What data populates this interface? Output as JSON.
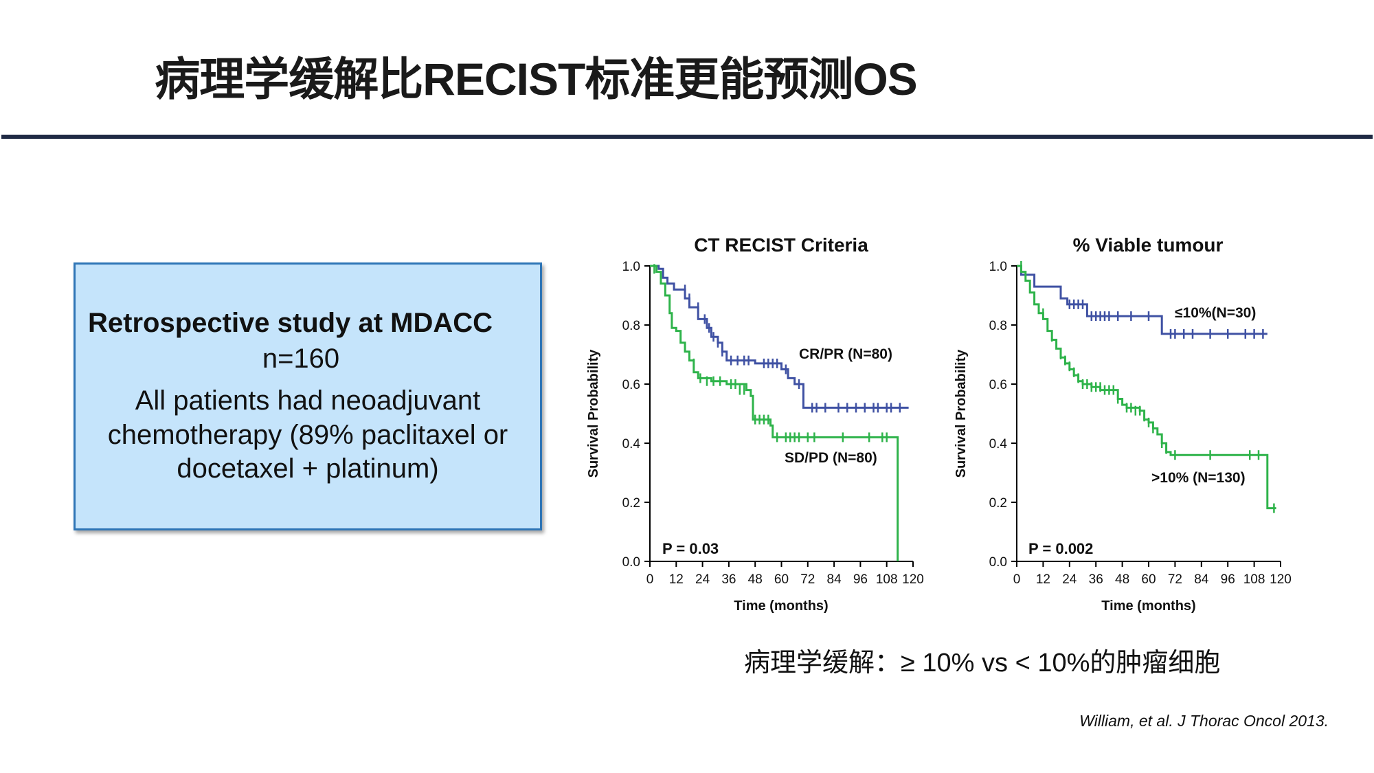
{
  "slide": {
    "title": "病理学缓解比RECIST标准更能预测OS",
    "box": {
      "heading": "Retrospective study at MDACC",
      "n": "n=160",
      "desc_line1": "All patients had neoadjuvant",
      "desc_line2": "chemotherapy (89% paclitaxel or",
      "desc_line3": "docetaxel + platinum)"
    },
    "caption": "病理学缓解：≥ 10% vs < 10%的肿瘤细胞",
    "citation": "William, et al. J Thorac Oncol 2013.",
    "colors": {
      "blue": "#3f51a3",
      "green": "#2eb34a",
      "rule": "#1f2a44",
      "box": "#c5e4fb"
    }
  },
  "chart_data": [
    {
      "type": "line",
      "title": "CT RECIST Criteria",
      "xlabel": "Time (months)",
      "ylabel": "Survival Probability",
      "xticks": [
        0,
        12,
        24,
        36,
        48,
        60,
        72,
        84,
        96,
        108,
        120
      ],
      "yticks": [
        0.0,
        0.2,
        0.4,
        0.6,
        0.8,
        1.0
      ],
      "xlim": [
        0,
        120
      ],
      "ylim": [
        0,
        1
      ],
      "annotation": "P = 0.03",
      "series": [
        {
          "name": "CR/PR (N=80)",
          "color": "#3f51a3",
          "steps": [
            [
              0,
              1.0
            ],
            [
              4,
              0.99
            ],
            [
              6,
              0.96
            ],
            [
              8,
              0.94
            ],
            [
              11,
              0.92
            ],
            [
              14,
              0.92
            ],
            [
              16,
              0.89
            ],
            [
              18,
              0.86
            ],
            [
              22,
              0.82
            ],
            [
              26,
              0.79
            ],
            [
              28,
              0.76
            ],
            [
              31,
              0.74
            ],
            [
              33,
              0.71
            ],
            [
              35,
              0.68
            ],
            [
              48,
              0.67
            ],
            [
              60,
              0.65
            ],
            [
              63,
              0.62
            ],
            [
              66,
              0.6
            ],
            [
              70,
              0.52
            ],
            [
              118,
              0.52
            ]
          ],
          "censor": [
            [
              16,
              0.92
            ],
            [
              18,
              0.89
            ],
            [
              22,
              0.86
            ],
            [
              25,
              0.82
            ],
            [
              27,
              0.79
            ],
            [
              29,
              0.76
            ],
            [
              31,
              0.74
            ],
            [
              33,
              0.71
            ],
            [
              37,
              0.68
            ],
            [
              40,
              0.68
            ],
            [
              43,
              0.68
            ],
            [
              45,
              0.68
            ],
            [
              52,
              0.67
            ],
            [
              54,
              0.67
            ],
            [
              56,
              0.67
            ],
            [
              58,
              0.67
            ],
            [
              62,
              0.65
            ],
            [
              68,
              0.6
            ],
            [
              74,
              0.52
            ],
            [
              76,
              0.52
            ],
            [
              80,
              0.52
            ],
            [
              86,
              0.52
            ],
            [
              90,
              0.52
            ],
            [
              94,
              0.52
            ],
            [
              98,
              0.52
            ],
            [
              102,
              0.52
            ],
            [
              104,
              0.52
            ],
            [
              108,
              0.52
            ],
            [
              110,
              0.52
            ],
            [
              114,
              0.52
            ]
          ]
        },
        {
          "name": "SD/PD (N=80)",
          "color": "#2eb34a",
          "steps": [
            [
              0,
              1.0
            ],
            [
              3,
              0.98
            ],
            [
              5,
              0.94
            ],
            [
              7,
              0.9
            ],
            [
              9,
              0.84
            ],
            [
              10,
              0.79
            ],
            [
              12,
              0.78
            ],
            [
              14,
              0.74
            ],
            [
              16,
              0.71
            ],
            [
              18,
              0.68
            ],
            [
              20,
              0.64
            ],
            [
              22,
              0.62
            ],
            [
              28,
              0.61
            ],
            [
              35,
              0.6
            ],
            [
              38,
              0.6
            ],
            [
              44,
              0.58
            ],
            [
              46,
              0.56
            ],
            [
              47,
              0.48
            ],
            [
              55,
              0.46
            ],
            [
              56,
              0.42
            ],
            [
              113,
              0.42
            ],
            [
              113,
              0.0
            ]
          ],
          "censor": [
            [
              2,
              0.99
            ],
            [
              20,
              0.67
            ],
            [
              23,
              0.62
            ],
            [
              26,
              0.61
            ],
            [
              29,
              0.61
            ],
            [
              32,
              0.61
            ],
            [
              37,
              0.6
            ],
            [
              39,
              0.6
            ],
            [
              41,
              0.58
            ],
            [
              43,
              0.58
            ],
            [
              48,
              0.48
            ],
            [
              50,
              0.48
            ],
            [
              52,
              0.48
            ],
            [
              54,
              0.48
            ],
            [
              58,
              0.42
            ],
            [
              62,
              0.42
            ],
            [
              64,
              0.42
            ],
            [
              66,
              0.42
            ],
            [
              68,
              0.42
            ],
            [
              72,
              0.42
            ],
            [
              75,
              0.42
            ],
            [
              88,
              0.42
            ],
            [
              100,
              0.42
            ],
            [
              106,
              0.42
            ],
            [
              108,
              0.42
            ]
          ]
        }
      ],
      "series_labels": [
        "CR/PR (N=80)",
        "SD/PD (N=80)"
      ]
    },
    {
      "type": "line",
      "title": "% Viable tumour",
      "xlabel": "Time (months)",
      "ylabel": "Survival Probability",
      "xticks": [
        0,
        12,
        24,
        36,
        48,
        60,
        72,
        84,
        96,
        108,
        120
      ],
      "yticks": [
        0.0,
        0.2,
        0.4,
        0.6,
        0.8,
        1.0
      ],
      "xlim": [
        0,
        120
      ],
      "ylim": [
        0,
        1
      ],
      "annotation": "P = 0.002",
      "series": [
        {
          "name": "≤10%(N=30)",
          "color": "#3f51a3",
          "steps": [
            [
              0,
              1.0
            ],
            [
              2,
              0.97
            ],
            [
              8,
              0.93
            ],
            [
              20,
              0.89
            ],
            [
              23,
              0.87
            ],
            [
              32,
              0.83
            ],
            [
              66,
              0.77
            ],
            [
              114,
              0.77
            ]
          ],
          "censor": [
            [
              24,
              0.87
            ],
            [
              26,
              0.87
            ],
            [
              28,
              0.87
            ],
            [
              30,
              0.87
            ],
            [
              34,
              0.83
            ],
            [
              36,
              0.83
            ],
            [
              38,
              0.83
            ],
            [
              40,
              0.83
            ],
            [
              42,
              0.83
            ],
            [
              46,
              0.83
            ],
            [
              52,
              0.83
            ],
            [
              60,
              0.83
            ],
            [
              70,
              0.77
            ],
            [
              72,
              0.77
            ],
            [
              76,
              0.77
            ],
            [
              80,
              0.77
            ],
            [
              88,
              0.77
            ],
            [
              96,
              0.77
            ],
            [
              104,
              0.77
            ],
            [
              108,
              0.77
            ],
            [
              112,
              0.77
            ]
          ]
        },
        {
          "name": ">10% (N=130)",
          "color": "#2eb34a",
          "steps": [
            [
              0,
              1.0
            ],
            [
              2,
              0.98
            ],
            [
              4,
              0.95
            ],
            [
              6,
              0.91
            ],
            [
              8,
              0.87
            ],
            [
              10,
              0.84
            ],
            [
              12,
              0.82
            ],
            [
              14,
              0.78
            ],
            [
              16,
              0.75
            ],
            [
              18,
              0.72
            ],
            [
              20,
              0.69
            ],
            [
              22,
              0.67
            ],
            [
              24,
              0.65
            ],
            [
              26,
              0.63
            ],
            [
              28,
              0.61
            ],
            [
              30,
              0.6
            ],
            [
              34,
              0.59
            ],
            [
              38,
              0.58
            ],
            [
              44,
              0.58
            ],
            [
              46,
              0.55
            ],
            [
              48,
              0.53
            ],
            [
              50,
              0.52
            ],
            [
              56,
              0.51
            ],
            [
              58,
              0.48
            ],
            [
              60,
              0.47
            ],
            [
              62,
              0.45
            ],
            [
              64,
              0.43
            ],
            [
              66,
              0.4
            ],
            [
              68,
              0.37
            ],
            [
              70,
              0.36
            ],
            [
              114,
              0.36
            ],
            [
              114,
              0.18
            ],
            [
              118,
              0.18
            ]
          ],
          "censor": [
            [
              2,
              1.0
            ],
            [
              12,
              0.84
            ],
            [
              14,
              0.8
            ],
            [
              16,
              0.76
            ],
            [
              20,
              0.7
            ],
            [
              22,
              0.68
            ],
            [
              24,
              0.66
            ],
            [
              26,
              0.64
            ],
            [
              28,
              0.62
            ],
            [
              30,
              0.6
            ],
            [
              32,
              0.6
            ],
            [
              34,
              0.59
            ],
            [
              36,
              0.59
            ],
            [
              38,
              0.59
            ],
            [
              40,
              0.58
            ],
            [
              42,
              0.58
            ],
            [
              44,
              0.58
            ],
            [
              46,
              0.55
            ],
            [
              50,
              0.52
            ],
            [
              52,
              0.52
            ],
            [
              54,
              0.51
            ],
            [
              56,
              0.51
            ],
            [
              58,
              0.49
            ],
            [
              60,
              0.47
            ],
            [
              62,
              0.45
            ],
            [
              66,
              0.4
            ],
            [
              68,
              0.38
            ],
            [
              72,
              0.36
            ],
            [
              88,
              0.36
            ],
            [
              106,
              0.36
            ],
            [
              110,
              0.36
            ],
            [
              117,
              0.18
            ]
          ]
        }
      ],
      "series_labels": [
        "≤10%(N=30)",
        ">10% (N=130)"
      ]
    }
  ]
}
